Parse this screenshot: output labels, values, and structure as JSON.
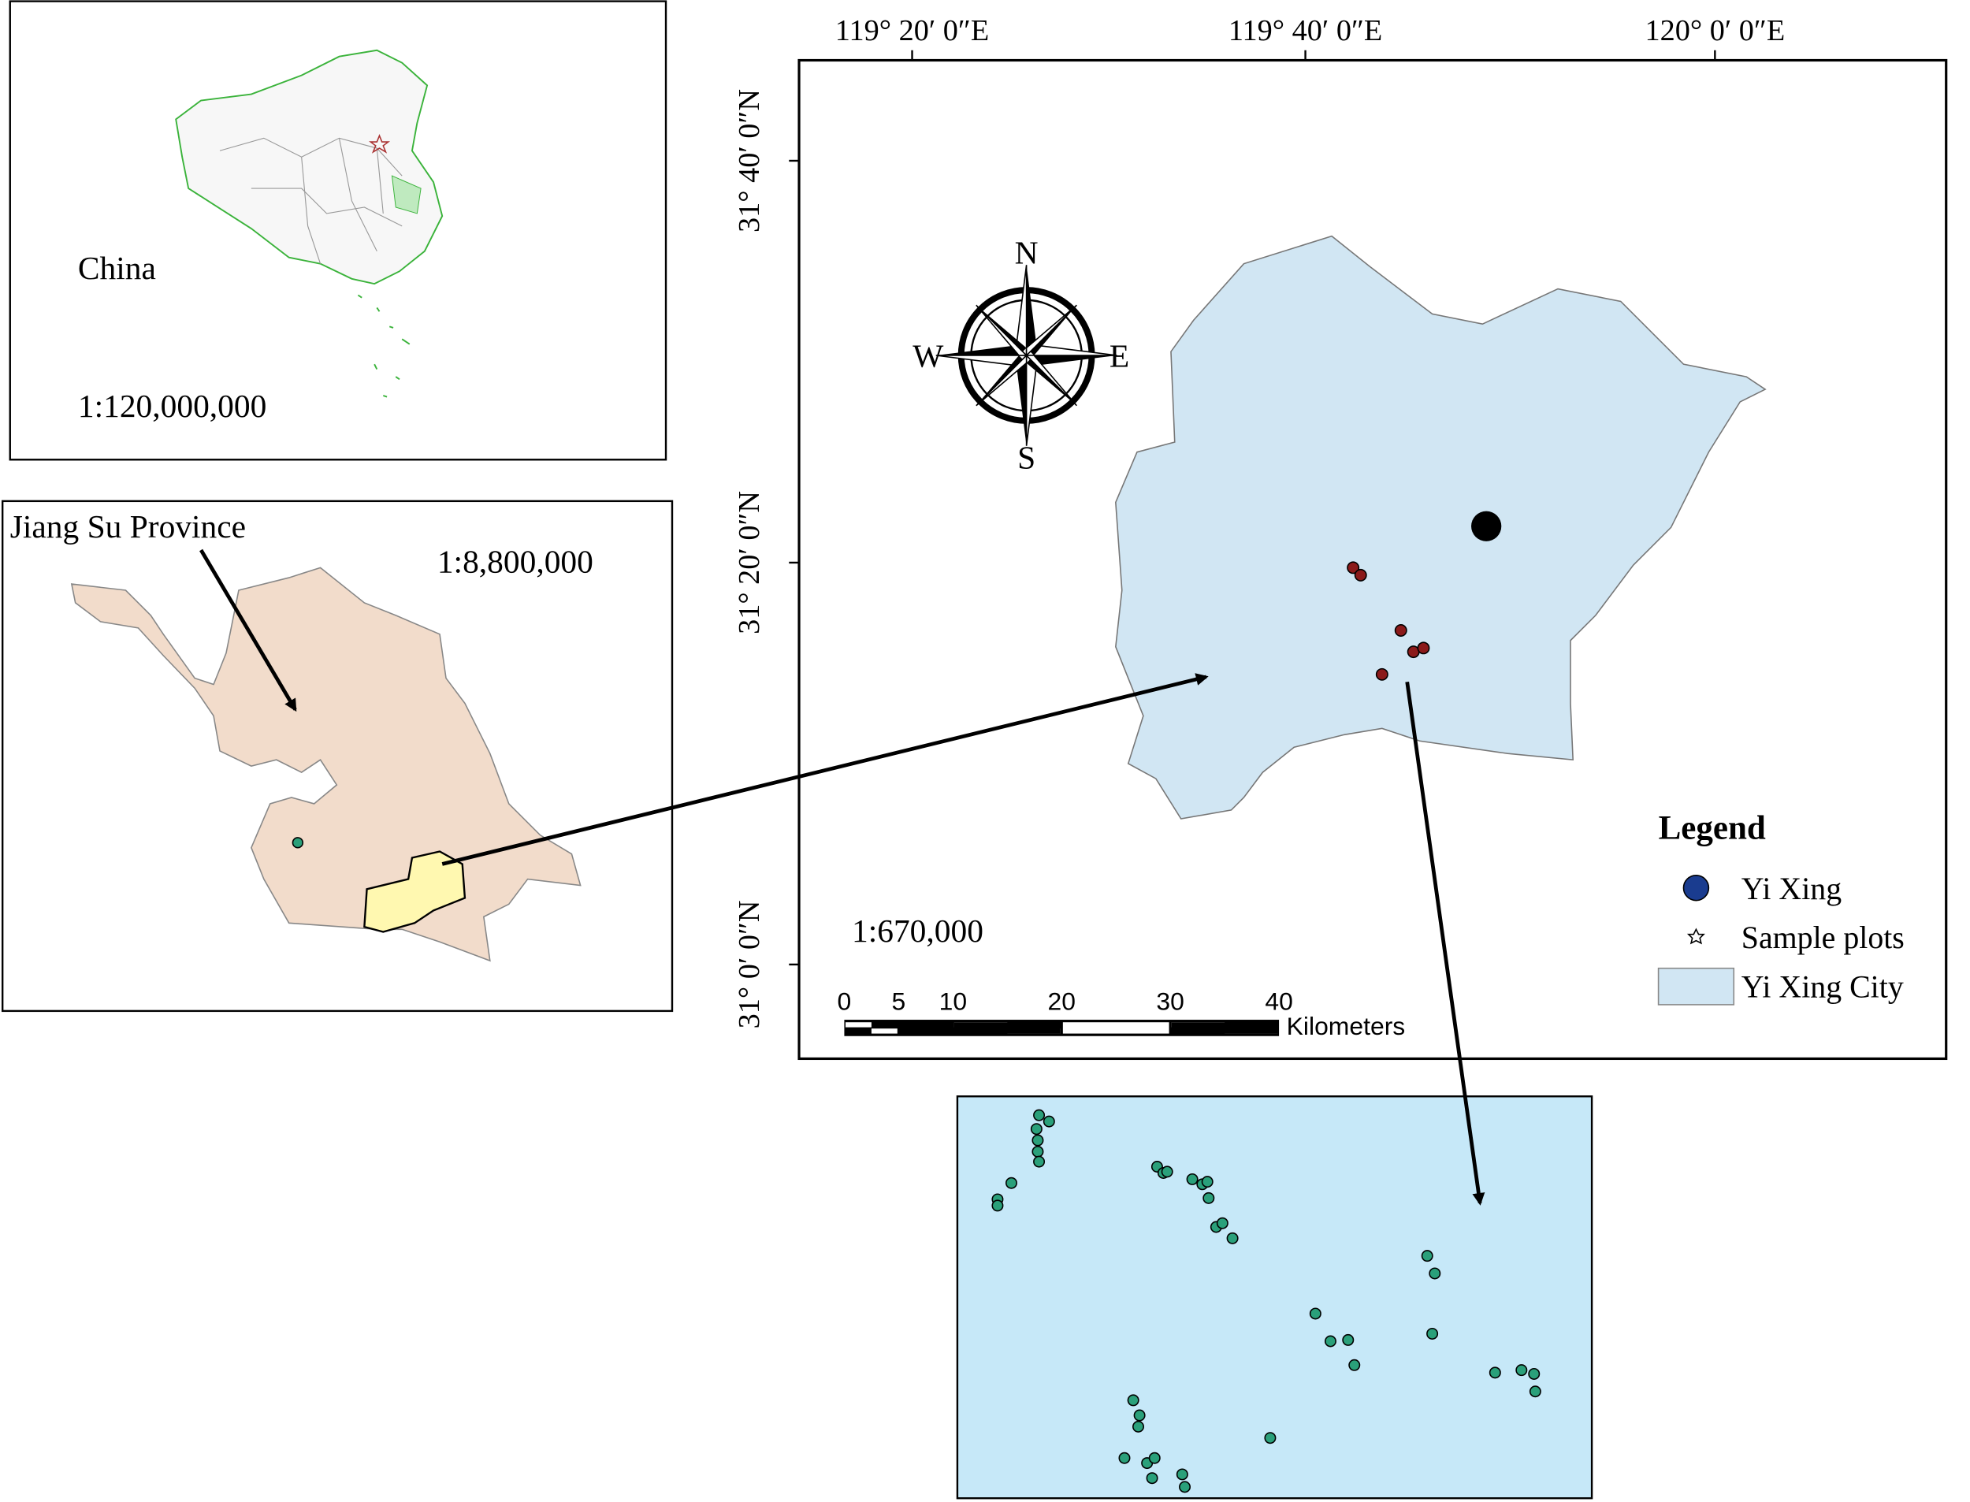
{
  "china_panel": {
    "label": "China",
    "scale": "1:120,000,000"
  },
  "province_panel": {
    "label": "Jiang Su Province",
    "scale": "1:8,800,000"
  },
  "main_map": {
    "x_labels": [
      "119° 20′ 0″E",
      "119° 40′ 0″E",
      "120° 0′ 0″E"
    ],
    "y_labels": [
      "31° 40′ 0″N",
      "31° 20′ 0″N",
      "31° 0′ 0″N"
    ],
    "compass": {
      "north": "N",
      "east": "E",
      "south": "S",
      "west": "W"
    },
    "scale": "1:670,000",
    "scale_bar": {
      "ticks": [
        0,
        5,
        10,
        20,
        30,
        40
      ],
      "unit": "Kilometers"
    },
    "legend": {
      "title": "Legend",
      "items": [
        "Yi Xing",
        "Sample plots",
        "Yi Xing City"
      ]
    }
  }
}
